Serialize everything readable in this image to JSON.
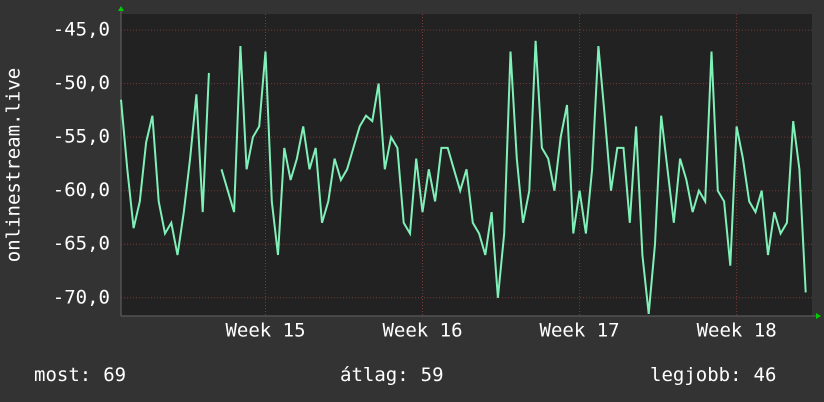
{
  "chart_data": {
    "type": "line",
    "y_label": "onlinestream.live",
    "x": [
      14.08,
      14.12,
      14.16,
      14.2,
      14.24,
      14.28,
      14.32,
      14.36,
      14.4,
      14.44,
      14.48,
      14.52,
      14.56,
      14.6,
      14.64,
      14.68,
      14.72,
      14.76,
      14.8,
      14.84,
      14.88,
      14.92,
      14.96,
      15,
      15.04,
      15.08,
      15.12,
      15.16,
      15.2,
      15.24,
      15.28,
      15.32,
      15.36,
      15.4,
      15.44,
      15.48,
      15.52,
      15.56,
      15.6,
      15.64,
      15.68,
      15.72,
      15.76,
      15.8,
      15.84,
      15.88,
      15.92,
      15.96,
      16,
      16.04,
      16.08,
      16.12,
      16.16,
      16.2,
      16.24,
      16.28,
      16.32,
      16.36,
      16.4,
      16.44,
      16.48,
      16.52,
      16.56,
      16.6,
      16.64,
      16.68,
      16.72,
      16.76,
      16.8,
      16.84,
      16.88,
      16.92,
      16.96,
      17,
      17.04,
      17.08,
      17.12,
      17.16,
      17.2,
      17.24,
      17.28,
      17.32,
      17.36,
      17.4,
      17.44,
      17.48,
      17.52,
      17.56,
      17.6,
      17.64,
      17.68,
      17.72,
      17.76,
      17.8,
      17.84,
      17.88,
      17.92,
      17.96,
      18,
      18.04,
      18.08,
      18.12,
      18.16,
      18.2,
      18.24,
      18.28,
      18.32,
      18.36,
      18.4,
      18.44
    ],
    "series": [
      {
        "color": "#7ff0b8",
        "values": [
          -51.5,
          -58,
          -63.5,
          -61,
          -55.5,
          -53,
          -61,
          -64,
          -63,
          -66,
          -62,
          -57,
          -51,
          -62,
          -49,
          null,
          -58,
          -60,
          -62,
          -46.5,
          -58,
          -55,
          -54,
          -47,
          -61,
          -66,
          -56,
          -59,
          -57,
          -54,
          -58,
          -56,
          -63,
          -61,
          -57,
          -59,
          -58,
          -56,
          -54,
          -53,
          -53.5,
          -50,
          -58,
          -55,
          -56,
          -63,
          -64,
          -57,
          -62,
          -58,
          -61,
          -56,
          -56,
          -58,
          -60,
          -58,
          -63,
          -64,
          -66,
          -62,
          -70,
          -64,
          -47,
          -57,
          -63,
          -60,
          -46,
          -56,
          -57,
          -60,
          -55,
          -52,
          -64,
          -60,
          -64,
          -58,
          -46.5,
          -53,
          -60,
          -56,
          -56,
          -63,
          -54,
          -66,
          -71.5,
          -65,
          -53,
          -58,
          -63,
          -57,
          -59,
          -62,
          -60,
          -61,
          -47,
          -60,
          -61,
          -67,
          -54,
          -57,
          -61,
          -62,
          -60,
          -66,
          -62,
          -64,
          -63,
          -53.5,
          -58,
          -69.5
        ]
      }
    ],
    "xlim": [
      14.08,
      18.48
    ],
    "ylim": [
      -71.7,
      -43.5
    ],
    "xticks": [
      {
        "value": 15,
        "label": "Week 15"
      },
      {
        "value": 16,
        "label": "Week 16"
      },
      {
        "value": 17,
        "label": "Week 17"
      },
      {
        "value": 18,
        "label": "Week 18"
      }
    ],
    "yticks": [
      {
        "value": -70,
        "label": "-70,0"
      },
      {
        "value": -65,
        "label": "-65,0"
      },
      {
        "value": -60,
        "label": "-60,0"
      },
      {
        "value": -55,
        "label": "-55,0"
      },
      {
        "value": -50,
        "label": "-50,0"
      },
      {
        "value": -45,
        "label": "-45,0"
      }
    ],
    "grid": true,
    "stats": [
      {
        "label": "most:",
        "value": 69
      },
      {
        "label": "átlag:",
        "value": 59
      },
      {
        "label": "legjobb:",
        "value": 46
      }
    ]
  }
}
